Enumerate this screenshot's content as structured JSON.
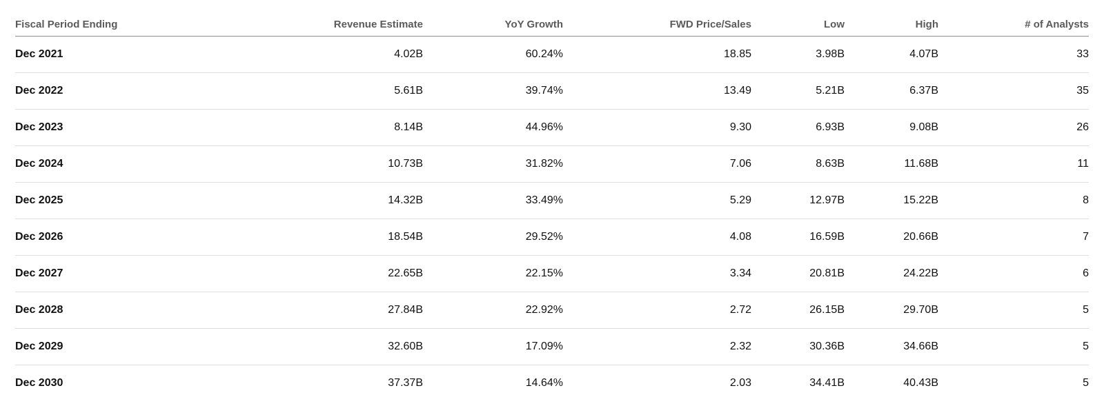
{
  "table": {
    "columns": [
      "Fiscal Period Ending",
      "Revenue Estimate",
      "YoY Growth",
      "FWD Price/Sales",
      "Low",
      "High",
      "# of Analysts"
    ],
    "rows": [
      [
        "Dec 2021",
        "4.02B",
        "60.24%",
        "18.85",
        "3.98B",
        "4.07B",
        "33"
      ],
      [
        "Dec 2022",
        "5.61B",
        "39.74%",
        "13.49",
        "5.21B",
        "6.37B",
        "35"
      ],
      [
        "Dec 2023",
        "8.14B",
        "44.96%",
        "9.30",
        "6.93B",
        "9.08B",
        "26"
      ],
      [
        "Dec 2024",
        "10.73B",
        "31.82%",
        "7.06",
        "8.63B",
        "11.68B",
        "11"
      ],
      [
        "Dec 2025",
        "14.32B",
        "33.49%",
        "5.29",
        "12.97B",
        "15.22B",
        "8"
      ],
      [
        "Dec 2026",
        "18.54B",
        "29.52%",
        "4.08",
        "16.59B",
        "20.66B",
        "7"
      ],
      [
        "Dec 2027",
        "22.65B",
        "22.15%",
        "3.34",
        "20.81B",
        "24.22B",
        "6"
      ],
      [
        "Dec 2028",
        "27.84B",
        "22.92%",
        "2.72",
        "26.15B",
        "29.70B",
        "5"
      ],
      [
        "Dec 2029",
        "32.60B",
        "17.09%",
        "2.32",
        "30.36B",
        "34.66B",
        "5"
      ],
      [
        "Dec 2030",
        "37.37B",
        "14.64%",
        "2.03",
        "34.41B",
        "40.43B",
        "5"
      ]
    ]
  },
  "colors": {
    "header_text": "#5b5b5b",
    "body_text": "#111111",
    "header_rule": "#8a8a8a",
    "row_rule": "#dedede",
    "background": "#ffffff"
  }
}
